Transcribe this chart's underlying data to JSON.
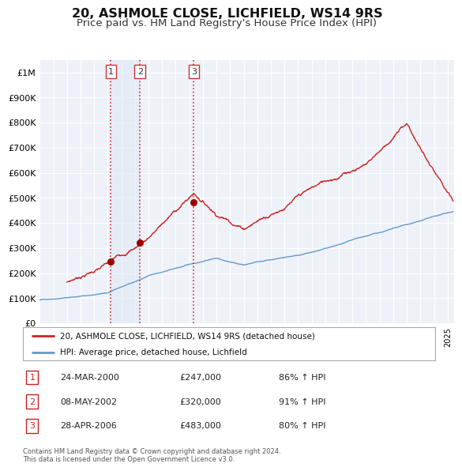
{
  "title": "20, ASHMOLE CLOSE, LICHFIELD, WS14 9RS",
  "subtitle": "Price paid vs. HM Land Registry's House Price Index (HPI)",
  "title_fontsize": 11.5,
  "subtitle_fontsize": 9.5,
  "background_color": "#ffffff",
  "plot_bg_color": "#eef2f8",
  "grid_color": "#ffffff",
  "ylim": [
    0,
    1050000
  ],
  "xlim_start": 1995.0,
  "xlim_end": 2025.5,
  "sale_dates": [
    2000.23,
    2002.37,
    2006.33
  ],
  "sale_prices": [
    247000,
    320000,
    483000
  ],
  "sale_labels": [
    "1",
    "2",
    "3"
  ],
  "vline_color": "#cc3333",
  "vline_style": ":",
  "marker_color": "#990000",
  "red_line_color": "#cc2222",
  "blue_line_color": "#6699cc",
  "shade_color": "#dde8f5",
  "legend_label_red": "20, ASHMOLE CLOSE, LICHFIELD, WS14 9RS (detached house)",
  "legend_label_blue": "HPI: Average price, detached house, Lichfield",
  "table_entries": [
    {
      "num": "1",
      "date": "24-MAR-2000",
      "price": "£247,000",
      "pct": "86% ↑ HPI"
    },
    {
      "num": "2",
      "date": "08-MAY-2002",
      "price": "£320,000",
      "pct": "91% ↑ HPI"
    },
    {
      "num": "3",
      "date": "28-APR-2006",
      "price": "£483,000",
      "pct": "80% ↑ HPI"
    }
  ],
  "footnote": "Contains HM Land Registry data © Crown copyright and database right 2024.\nThis data is licensed under the Open Government Licence v3.0.",
  "ytick_labels": [
    "£0",
    "£100K",
    "£200K",
    "£300K",
    "£400K",
    "£500K",
    "£600K",
    "£700K",
    "£800K",
    "£900K",
    "£1M"
  ],
  "ytick_values": [
    0,
    100000,
    200000,
    300000,
    400000,
    500000,
    600000,
    700000,
    800000,
    900000,
    1000000
  ]
}
